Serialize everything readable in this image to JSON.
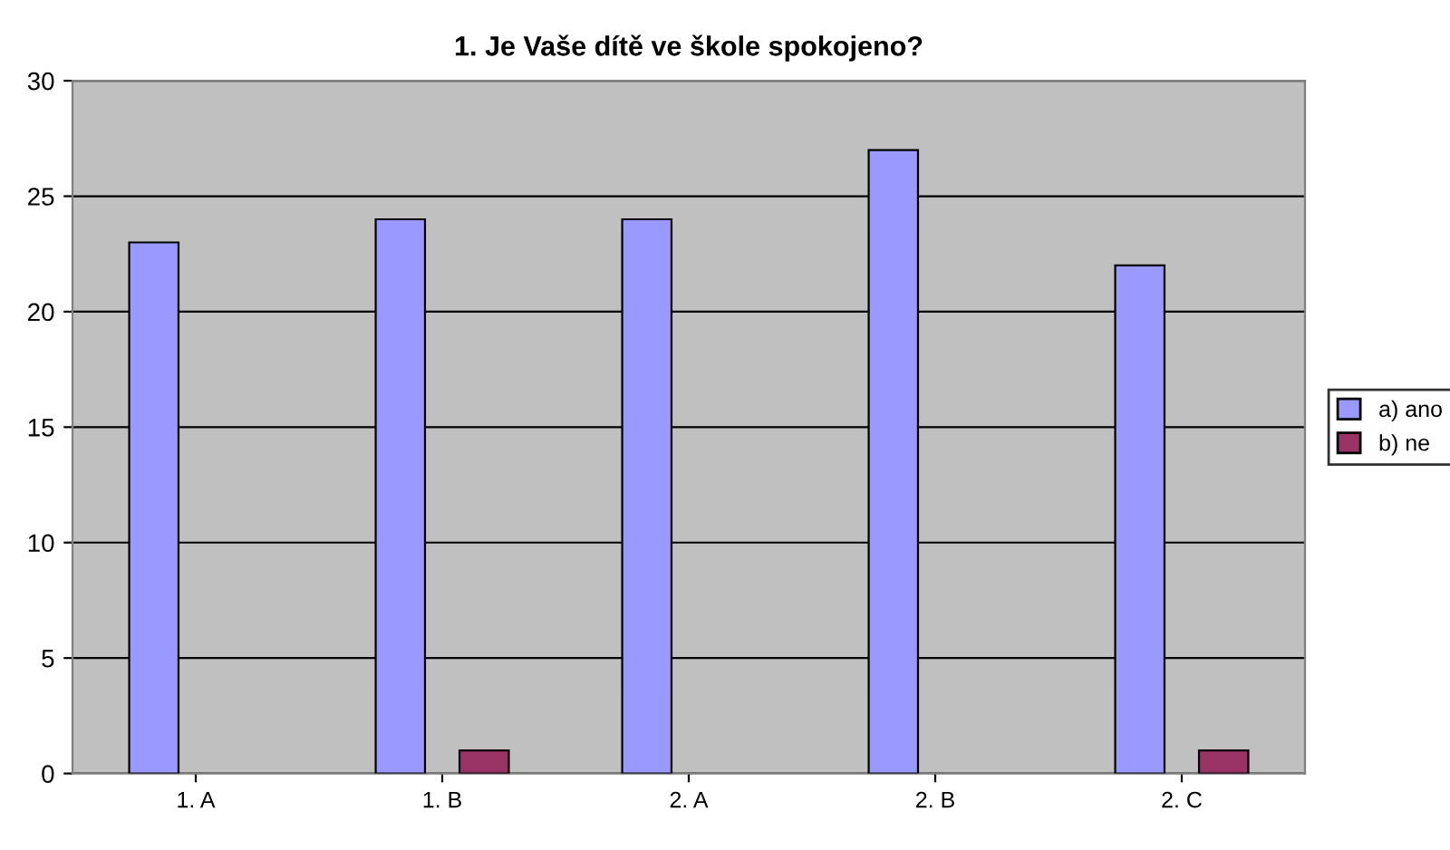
{
  "chart_data": {
    "type": "bar",
    "title": "1. Je Vaše dítě ve škole spokojeno?",
    "categories": [
      "1. A",
      "1. B",
      "2. A",
      "2. B",
      "2. C"
    ],
    "series": [
      {
        "name": "a) ano",
        "color": "#9999ff",
        "values": [
          23,
          24,
          24,
          27,
          22
        ]
      },
      {
        "name": "b) ne",
        "color": "#993366",
        "values": [
          null,
          1,
          null,
          null,
          1
        ]
      }
    ],
    "ylim": [
      0,
      30
    ],
    "yticks": [
      0,
      5,
      10,
      15,
      20,
      25,
      30
    ],
    "grid": "y",
    "legend": "right"
  }
}
